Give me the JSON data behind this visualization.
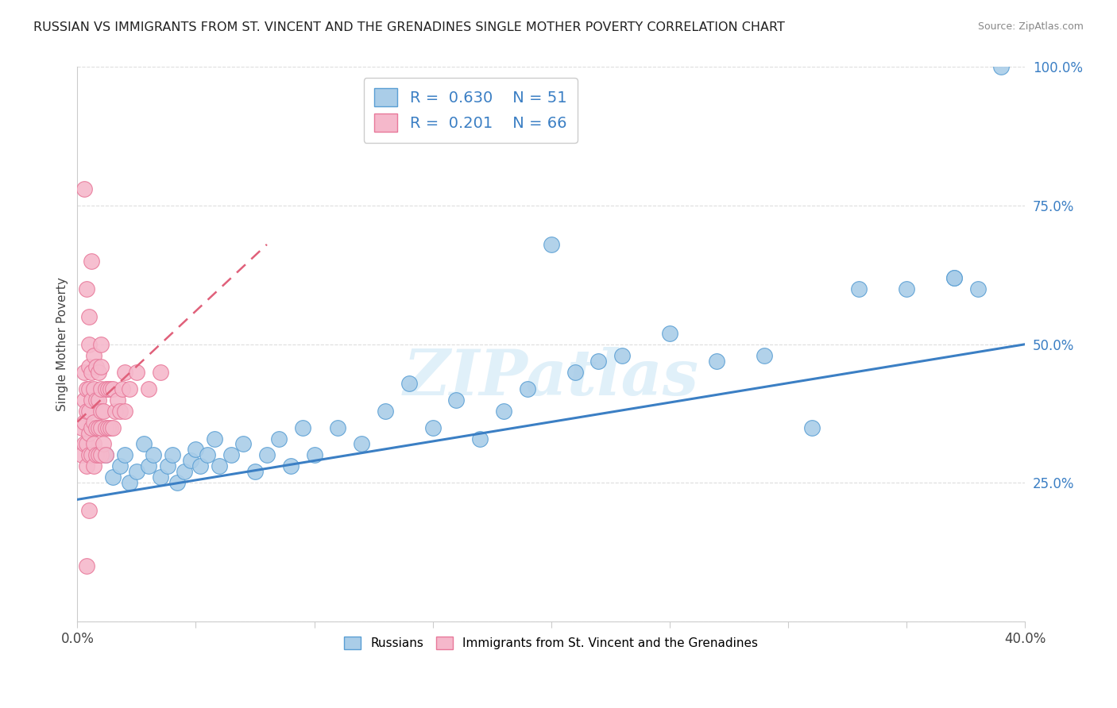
{
  "title": "RUSSIAN VS IMMIGRANTS FROM ST. VINCENT AND THE GRENADINES SINGLE MOTHER POVERTY CORRELATION CHART",
  "source": "Source: ZipAtlas.com",
  "ylabel": "Single Mother Poverty",
  "xlim": [
    0.0,
    0.4
  ],
  "ylim": [
    0.0,
    1.0
  ],
  "legend_R1_val": "0.630",
  "legend_N1_val": "51",
  "legend_R2_val": "0.201",
  "legend_N2_val": "66",
  "blue_color": "#aacde8",
  "pink_color": "#f5b8cb",
  "blue_edge_color": "#5a9fd4",
  "pink_edge_color": "#e8799a",
  "blue_line_color": "#3b7fc4",
  "pink_line_color": "#e0607a",
  "watermark": "ZIPatlas",
  "blue_scatter_x": [
    0.012,
    0.015,
    0.018,
    0.02,
    0.022,
    0.025,
    0.028,
    0.03,
    0.032,
    0.035,
    0.038,
    0.04,
    0.042,
    0.045,
    0.048,
    0.05,
    0.052,
    0.055,
    0.058,
    0.06,
    0.065,
    0.07,
    0.075,
    0.08,
    0.085,
    0.09,
    0.095,
    0.1,
    0.11,
    0.12,
    0.13,
    0.14,
    0.15,
    0.16,
    0.17,
    0.18,
    0.19,
    0.2,
    0.21,
    0.22,
    0.23,
    0.25,
    0.27,
    0.29,
    0.31,
    0.33,
    0.35,
    0.37,
    0.38,
    0.39,
    0.37
  ],
  "blue_scatter_y": [
    0.3,
    0.26,
    0.28,
    0.3,
    0.25,
    0.27,
    0.32,
    0.28,
    0.3,
    0.26,
    0.28,
    0.3,
    0.25,
    0.27,
    0.29,
    0.31,
    0.28,
    0.3,
    0.33,
    0.28,
    0.3,
    0.32,
    0.27,
    0.3,
    0.33,
    0.28,
    0.35,
    0.3,
    0.35,
    0.32,
    0.38,
    0.43,
    0.35,
    0.4,
    0.33,
    0.38,
    0.42,
    0.68,
    0.45,
    0.47,
    0.48,
    0.52,
    0.47,
    0.48,
    0.35,
    0.6,
    0.6,
    0.62,
    0.6,
    1.0,
    0.62
  ],
  "pink_scatter_x": [
    0.002,
    0.002,
    0.003,
    0.003,
    0.003,
    0.003,
    0.004,
    0.004,
    0.004,
    0.004,
    0.005,
    0.005,
    0.005,
    0.005,
    0.005,
    0.005,
    0.005,
    0.006,
    0.006,
    0.006,
    0.006,
    0.007,
    0.007,
    0.007,
    0.007,
    0.007,
    0.008,
    0.008,
    0.008,
    0.008,
    0.009,
    0.009,
    0.009,
    0.009,
    0.01,
    0.01,
    0.01,
    0.01,
    0.01,
    0.01,
    0.011,
    0.011,
    0.012,
    0.012,
    0.012,
    0.013,
    0.013,
    0.014,
    0.014,
    0.015,
    0.015,
    0.016,
    0.017,
    0.018,
    0.019,
    0.02,
    0.02,
    0.022,
    0.025,
    0.03,
    0.035,
    0.003,
    0.004,
    0.005,
    0.006,
    0.004
  ],
  "pink_scatter_y": [
    0.3,
    0.35,
    0.32,
    0.36,
    0.4,
    0.45,
    0.28,
    0.32,
    0.38,
    0.42,
    0.3,
    0.34,
    0.38,
    0.42,
    0.46,
    0.5,
    0.55,
    0.3,
    0.35,
    0.4,
    0.45,
    0.28,
    0.32,
    0.36,
    0.42,
    0.48,
    0.3,
    0.35,
    0.4,
    0.46,
    0.3,
    0.35,
    0.4,
    0.45,
    0.3,
    0.35,
    0.38,
    0.42,
    0.46,
    0.5,
    0.32,
    0.38,
    0.3,
    0.35,
    0.42,
    0.35,
    0.42,
    0.35,
    0.42,
    0.35,
    0.42,
    0.38,
    0.4,
    0.38,
    0.42,
    0.38,
    0.45,
    0.42,
    0.45,
    0.42,
    0.45,
    0.78,
    0.6,
    0.2,
    0.65,
    0.1
  ],
  "blue_line_x": [
    0.0,
    0.4
  ],
  "blue_line_y": [
    0.22,
    0.5
  ],
  "pink_line_x": [
    0.0,
    0.08
  ],
  "pink_line_y": [
    0.36,
    0.68
  ]
}
